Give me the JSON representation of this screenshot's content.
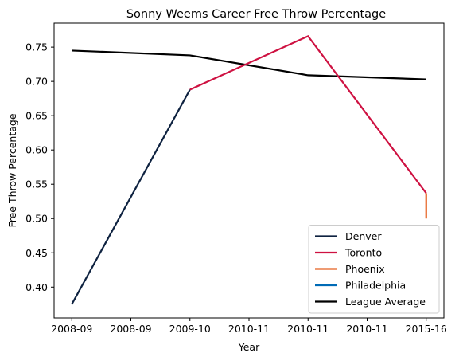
{
  "chart_data": {
    "type": "line",
    "title": "Sonny Weems Career Free Throw Percentage",
    "xlabel": "Year",
    "ylabel": "Free Throw Percentage",
    "x_tick_labels": [
      "2008-09",
      "2008-09",
      "2009-10",
      "2010-11",
      "2010-11",
      "2010-11",
      "2015-16"
    ],
    "x_tick_positions": [
      0,
      0.5,
      1,
      1.5,
      2,
      2.5,
      3
    ],
    "xlim": [
      -0.15,
      3.15
    ],
    "ylim": [
      0.355,
      0.785
    ],
    "y_ticks": [
      0.4,
      0.45,
      0.5,
      0.55,
      0.6,
      0.65,
      0.7,
      0.75
    ],
    "grid": false,
    "legend_position": "lower right",
    "series": [
      {
        "name": "Denver",
        "color": "#0e2240",
        "x": [
          0,
          1
        ],
        "y": [
          0.375,
          0.688
        ]
      },
      {
        "name": "Toronto",
        "color": "#ce1141",
        "x": [
          1,
          2,
          3
        ],
        "y": [
          0.688,
          0.766,
          0.537
        ]
      },
      {
        "name": "Phoenix",
        "color": "#e56020",
        "x": [
          3,
          3
        ],
        "y": [
          0.537,
          0.5
        ]
      },
      {
        "name": "Philadelphia",
        "color": "#006bb6",
        "x": [],
        "y": []
      },
      {
        "name": "League Average",
        "color": "#000000",
        "x": [
          0,
          1,
          2,
          3
        ],
        "y": [
          0.745,
          0.738,
          0.709,
          0.703
        ]
      }
    ]
  }
}
